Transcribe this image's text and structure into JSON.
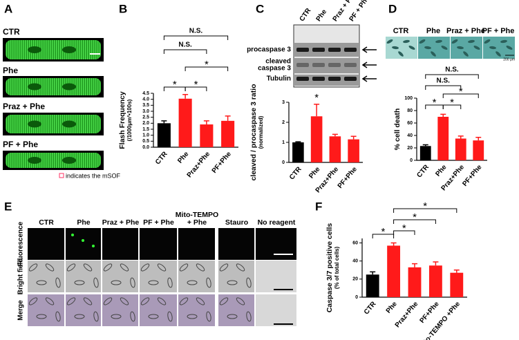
{
  "panel_labels": [
    "A",
    "B",
    "C",
    "D",
    "E",
    "F"
  ],
  "panel_a": {
    "rows": [
      "CTR",
      "Phe",
      "Praz + Phe",
      "PF + Phe"
    ],
    "legend": "indicates the mSOF"
  },
  "panel_c_blot": {
    "lanes": [
      "CTR",
      "Phe",
      "Praz + Phe",
      "PF + Phe"
    ],
    "bands": [
      [
        "procaspase 3"
      ],
      [
        "cleaved",
        "caspase 3"
      ],
      [
        "Tubulin"
      ]
    ]
  },
  "panel_d_images": {
    "lanes": [
      "CTR",
      "Phe",
      "Praz + Phe",
      "PF + Phe"
    ],
    "scale": "200 μm"
  },
  "panel_e": {
    "columns": [
      [
        "CTR"
      ],
      [
        "Phe"
      ],
      [
        "Praz + Phe"
      ],
      [
        "PF + Phe"
      ],
      [
        "Mito-TEMPO",
        "+ Phe"
      ],
      [
        "Stauro"
      ],
      [
        "No reagent"
      ]
    ],
    "rows": [
      "Fluorescence",
      "Bright field",
      "Merge"
    ]
  },
  "chart_data": [
    {
      "type": "bar",
      "categories": [
        "CTR",
        "Phe",
        "Praz+Phe",
        "PF+Phe"
      ],
      "values": [
        2.0,
        4.05,
        1.9,
        2.2
      ],
      "errors": [
        0.2,
        0.35,
        0.3,
        0.4
      ],
      "colors": [
        "#000000",
        "#ff1a1a",
        "#ff1a1a",
        "#ff1a1a"
      ],
      "ylabel": [
        "Flash Frequency",
        "(/1000μm²•100s)"
      ],
      "ylim": [
        0,
        4.5
      ],
      "yticks": [
        {
          "value": 0,
          "label": "0.0"
        },
        0.5,
        {
          "value": 1,
          "label": "1.0"
        },
        1.5,
        {
          "value": 2,
          "label": "2.0"
        },
        2.5,
        {
          "value": 3,
          "label": "3.0"
        },
        3.5,
        {
          "value": 4,
          "label": "4.0"
        },
        4.5
      ],
      "annotations": [
        "*",
        "*",
        "*",
        "N.S.",
        "N.S."
      ]
    },
    {
      "type": "bar",
      "categories": [
        "CTR",
        "Phe",
        "Praz+Phe",
        "PF+Phe"
      ],
      "values": [
        1.0,
        2.3,
        1.3,
        1.15
      ],
      "errors": [
        0.03,
        0.6,
        0.1,
        0.15
      ],
      "colors": [
        "#000000",
        "#ff1a1a",
        "#ff1a1a",
        "#ff1a1a"
      ],
      "ylabel": [
        "cleaved / procaspase 3 ratio",
        "(normalized)"
      ],
      "ylim": [
        0,
        3
      ],
      "yticks": [
        0,
        1,
        2,
        3
      ],
      "annotations": [
        "*"
      ]
    },
    {
      "type": "bar",
      "categories": [
        "CTR",
        "Phe",
        "Praz+Phe",
        "PF+Phe"
      ],
      "values": [
        23,
        70,
        35,
        32
      ],
      "errors": [
        2,
        4,
        4,
        5
      ],
      "colors": [
        "#000000",
        "#ff1a1a",
        "#ff1a1a",
        "#ff1a1a"
      ],
      "ylabel": [
        "% cell death"
      ],
      "ylim": [
        0,
        100
      ],
      "yticks": [
        0,
        20,
        40,
        60,
        80,
        100
      ],
      "annotations": [
        "*",
        "*",
        "*",
        "N.S.",
        "N.S."
      ]
    },
    {
      "type": "bar",
      "categories": [
        "CTR",
        "Phe",
        "Praz+Phe",
        "PF+Phe",
        "Mito-TEMPO +Phe"
      ],
      "values": [
        25,
        57,
        33,
        35,
        27
      ],
      "errors": [
        3,
        3,
        4,
        4,
        3
      ],
      "colors": [
        "#000000",
        "#ff1a1a",
        "#ff1a1a",
        "#ff1a1a",
        "#ff1a1a"
      ],
      "ylabel": [
        "Caspase 3/7 positive  cells",
        "(% of total cells)"
      ],
      "ylim": [
        0,
        65
      ],
      "yticks": [
        0,
        20,
        40,
        60
      ],
      "annotations": [
        "*",
        "*",
        "*",
        "*"
      ]
    }
  ]
}
